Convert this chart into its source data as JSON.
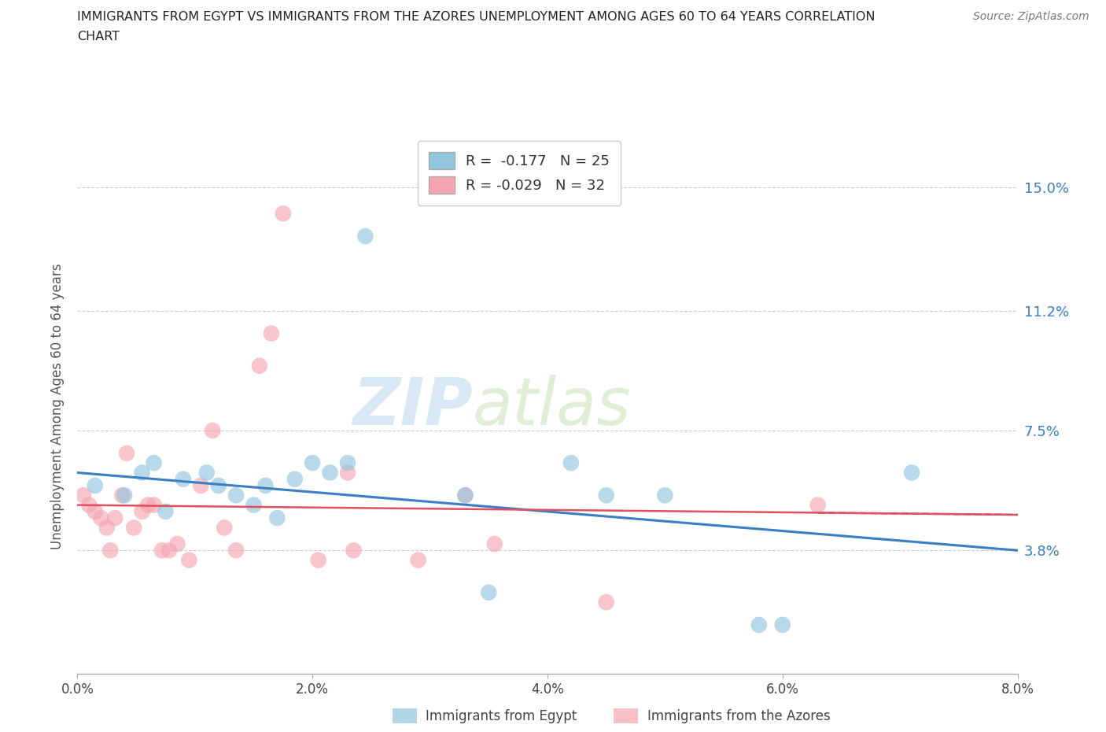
{
  "title_line1": "IMMIGRANTS FROM EGYPT VS IMMIGRANTS FROM THE AZORES UNEMPLOYMENT AMONG AGES 60 TO 64 YEARS CORRELATION",
  "title_line2": "CHART",
  "source": "Source: ZipAtlas.com",
  "ylabel": "Unemployment Among Ages 60 to 64 years",
  "xlim": [
    0.0,
    8.0
  ],
  "ylim": [
    0.0,
    16.5
  ],
  "yticks": [
    3.8,
    7.5,
    11.2,
    15.0
  ],
  "xticks": [
    0.0,
    2.0,
    4.0,
    6.0,
    8.0
  ],
  "legend_egypt": "R =  -0.177   N = 25",
  "legend_azores": "R = -0.029   N = 32",
  "egypt_color": "#92c5de",
  "azores_color": "#f4a6b0",
  "egypt_line_color": "#3a7fc1",
  "azores_line_color": "#e05060",
  "egypt_scatter_x": [
    0.15,
    0.4,
    0.55,
    0.65,
    0.75,
    0.9,
    1.1,
    1.2,
    1.35,
    1.5,
    1.6,
    1.7,
    1.85,
    2.0,
    2.15,
    2.3,
    2.45,
    3.3,
    3.5,
    4.2,
    4.5,
    5.0,
    5.8,
    6.0,
    7.1
  ],
  "egypt_scatter_y": [
    5.8,
    5.5,
    6.2,
    6.5,
    5.0,
    6.0,
    6.2,
    5.8,
    5.5,
    5.2,
    5.8,
    4.8,
    6.0,
    6.5,
    6.2,
    6.5,
    13.5,
    5.5,
    2.5,
    6.5,
    5.5,
    5.5,
    1.5,
    1.5,
    6.2
  ],
  "azores_scatter_x": [
    0.05,
    0.1,
    0.15,
    0.2,
    0.25,
    0.28,
    0.32,
    0.38,
    0.42,
    0.48,
    0.55,
    0.6,
    0.65,
    0.72,
    0.78,
    0.85,
    0.95,
    1.05,
    1.15,
    1.25,
    1.35,
    1.55,
    1.65,
    1.75,
    2.05,
    2.3,
    2.35,
    2.9,
    3.3,
    3.55,
    4.5,
    6.3
  ],
  "azores_scatter_y": [
    5.5,
    5.2,
    5.0,
    4.8,
    4.5,
    3.8,
    4.8,
    5.5,
    6.8,
    4.5,
    5.0,
    5.2,
    5.2,
    3.8,
    3.8,
    4.0,
    3.5,
    5.8,
    7.5,
    4.5,
    3.8,
    9.5,
    10.5,
    14.2,
    3.5,
    6.2,
    3.8,
    3.5,
    5.5,
    4.0,
    2.2,
    5.2
  ],
  "watermark_ZIP": "ZIP",
  "watermark_atlas": "atlas",
  "background_color": "#ffffff",
  "grid_color": "#cccccc"
}
